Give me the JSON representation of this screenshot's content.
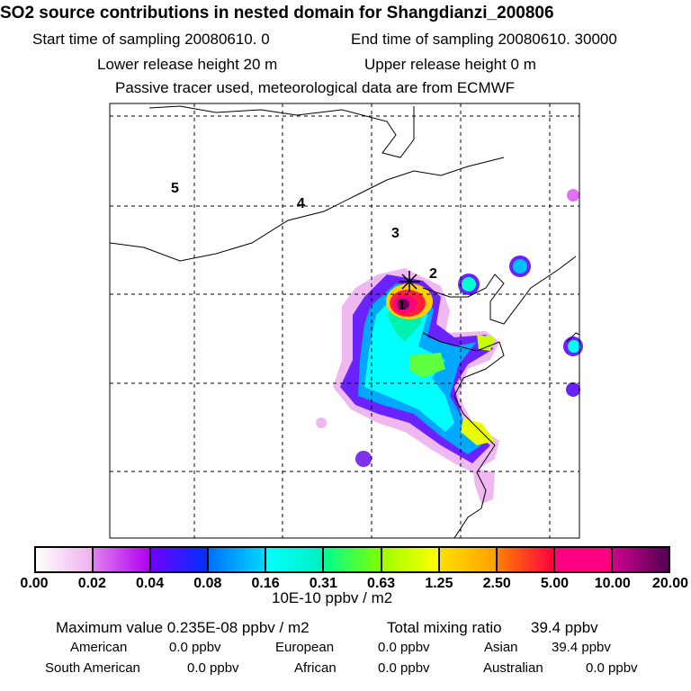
{
  "header": {
    "title": "SO2 source contributions in nested domain for Shangdianzi_200806",
    "start_label": "Start time of sampling 20080610.     0",
    "end_label": "End time of sampling 20080610. 30000",
    "lower_label": "Lower release height   20 m",
    "upper_label": "Upper release height    0 m",
    "tracer_note": "Passive tracer used, meteorological data are from ECMWF"
  },
  "map": {
    "region_labels": [
      "1",
      "2",
      "3",
      "4",
      "5"
    ],
    "receptor_marker": "star-icon"
  },
  "colorbar": {
    "ticks": [
      "0.00",
      "0.02",
      "0.04",
      "0.08",
      "0.16",
      "0.31",
      "0.63",
      "1.25",
      "2.50",
      "5.00",
      "10.00",
      "20.00"
    ],
    "colors": [
      [
        "#ffffff",
        "#f0b0f0"
      ],
      [
        "#e080f0",
        "#b000f0"
      ],
      [
        "#7000ff",
        "#0030ff"
      ],
      [
        "#0070ff",
        "#00d8ff"
      ],
      [
        "#00ffff",
        "#00f0c0"
      ],
      [
        "#00ff90",
        "#80ff00"
      ],
      [
        "#a0ff00",
        "#ffff00"
      ],
      [
        "#ffe000",
        "#ffa000"
      ],
      [
        "#ff8000",
        "#ff0040"
      ],
      [
        "#ff0080",
        "#ff0080"
      ],
      [
        "#d00090",
        "#500050"
      ]
    ],
    "unit_label": "10E-10 ppbv / m2"
  },
  "summary": {
    "max_label": "Maximum value  0.235E-08 ppbv / m2",
    "total_label": "Total mixing ratio",
    "total_value": "39.4 ppbv",
    "rows": [
      [
        {
          "label": "American",
          "value": "0.0 ppbv"
        },
        {
          "label": "European",
          "value": "0.0 ppbv"
        },
        {
          "label": "Asian",
          "value": "39.4 ppbv"
        }
      ],
      [
        {
          "label": "South American",
          "value": "0.0 ppbv"
        },
        {
          "label": "African",
          "value": "0.0 ppbv"
        },
        {
          "label": "Australian",
          "value": "0.0 ppbv"
        }
      ]
    ]
  }
}
